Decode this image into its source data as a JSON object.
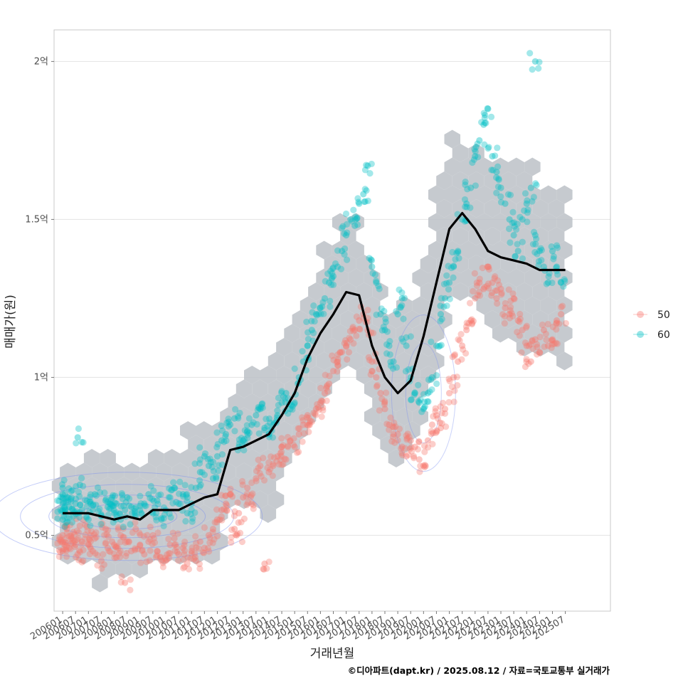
{
  "chart_data": {
    "type": "scatter",
    "xlabel": "거래년월",
    "ylabel": "매매가(원)",
    "caption": "©디아파트(dapt.kr) / 2025.08.12 / 자료=국토교통부 실거래가",
    "x_ticks": [
      "200601",
      "200607",
      "200701",
      "200707",
      "200801",
      "200807",
      "200901",
      "200907",
      "201001",
      "201007",
      "201101",
      "201107",
      "201201",
      "201207",
      "201301",
      "201307",
      "201401",
      "201407",
      "201501",
      "201507",
      "201601",
      "201607",
      "201701",
      "201707",
      "201801",
      "201807",
      "201901",
      "201907",
      "202001",
      "202007",
      "202101",
      "202107",
      "202201",
      "202207",
      "202301",
      "202307",
      "202401",
      "202407",
      "202501",
      "202507"
    ],
    "y_ticks": [
      {
        "value": 0.5,
        "label": "0.5억"
      },
      {
        "value": 1.0,
        "label": "1억"
      },
      {
        "value": 1.5,
        "label": "1.5억"
      },
      {
        "value": 2.0,
        "label": "2억"
      }
    ],
    "y_unit": "억원",
    "ylim": [
      0.26,
      2.1
    ],
    "xlim": [
      "200509",
      "202704"
    ],
    "grid": "horizontal",
    "legend_position": "right",
    "legend": [
      {
        "name": "50",
        "color": "#F8766D"
      },
      {
        "name": "60",
        "color": "#00BFC4"
      }
    ],
    "trend_line": {
      "color": "#000000",
      "x": [
        "200601",
        "200607",
        "200701",
        "200707",
        "200801",
        "200807",
        "200901",
        "200907",
        "201001",
        "201007",
        "201101",
        "201107",
        "201201",
        "201207",
        "201301",
        "201307",
        "201401",
        "201407",
        "201501",
        "201507",
        "201601",
        "201607",
        "201701",
        "201707",
        "201801",
        "201807",
        "201901",
        "201907",
        "202001",
        "202007",
        "202101",
        "202107",
        "202201",
        "202207",
        "202301",
        "202307",
        "202401",
        "202407",
        "202501",
        "202507"
      ],
      "values": [
        0.57,
        0.57,
        0.57,
        0.56,
        0.55,
        0.56,
        0.55,
        0.58,
        0.58,
        0.58,
        0.6,
        0.62,
        0.63,
        0.77,
        0.78,
        0.8,
        0.82,
        0.88,
        0.95,
        1.06,
        1.14,
        1.2,
        1.27,
        1.26,
        1.1,
        1.0,
        0.95,
        0.99,
        1.13,
        1.3,
        1.47,
        1.52,
        1.47,
        1.4,
        1.38,
        1.37,
        1.36,
        1.34,
        1.34,
        1.34
      ]
    },
    "series": [
      {
        "name": "50",
        "color": "#F8766D",
        "points": [
          [
            "200601",
            0.45
          ],
          [
            "200601",
            0.48
          ],
          [
            "200601",
            0.5
          ],
          [
            "200602",
            0.47
          ],
          [
            "200603",
            0.52
          ],
          [
            "200604",
            0.46
          ],
          [
            "200605",
            0.49
          ],
          [
            "200606",
            0.51
          ],
          [
            "200607",
            0.47
          ],
          [
            "200608",
            0.44
          ],
          [
            "200609",
            0.53
          ],
          [
            "200610",
            0.48
          ],
          [
            "200701",
            0.47
          ],
          [
            "200702",
            0.5
          ],
          [
            "200703",
            0.45
          ],
          [
            "200704",
            0.49
          ],
          [
            "200707",
            0.42
          ],
          [
            "200709",
            0.52
          ],
          [
            "200710",
            0.46
          ],
          [
            "200712",
            0.48
          ],
          [
            "200801",
            0.47
          ],
          [
            "200802",
            0.43
          ],
          [
            "200804",
            0.5
          ],
          [
            "200806",
            0.35
          ],
          [
            "200807",
            0.48
          ],
          [
            "200809",
            0.45
          ],
          [
            "200811",
            0.52
          ],
          [
            "200901",
            0.47
          ],
          [
            "200903",
            0.44
          ],
          [
            "200905",
            0.48
          ],
          [
            "200907",
            0.5
          ],
          [
            "200909",
            0.45
          ],
          [
            "200911",
            0.42
          ],
          [
            "201001",
            0.42
          ],
          [
            "201003",
            0.47
          ],
          [
            "201005",
            0.49
          ],
          [
            "201007",
            0.44
          ],
          [
            "201009",
            0.46
          ],
          [
            "201011",
            0.41
          ],
          [
            "201101",
            0.45
          ],
          [
            "201103",
            0.42
          ],
          [
            "201105",
            0.48
          ],
          [
            "201107",
            0.46
          ],
          [
            "201109",
            0.5
          ],
          [
            "201111",
            0.52
          ],
          [
            "201201",
            0.55
          ],
          [
            "201203",
            0.58
          ],
          [
            "201205",
            0.6
          ],
          [
            "201207",
            0.63
          ],
          [
            "201209",
            0.52
          ],
          [
            "201210",
            0.5
          ],
          [
            "201211",
            0.57
          ],
          [
            "201301",
            0.62
          ],
          [
            "201303",
            0.65
          ],
          [
            "201305",
            0.6
          ],
          [
            "201307",
            0.68
          ],
          [
            "201309",
            0.72
          ],
          [
            "201311",
            0.41
          ],
          [
            "201401",
            0.7
          ],
          [
            "201403",
            0.72
          ],
          [
            "201405",
            0.75
          ],
          [
            "201407",
            0.78
          ],
          [
            "201409",
            0.74
          ],
          [
            "201411",
            0.8
          ],
          [
            "201501",
            0.78
          ],
          [
            "201503",
            0.82
          ],
          [
            "201505",
            0.85
          ],
          [
            "201507",
            0.88
          ],
          [
            "201509",
            0.86
          ],
          [
            "201511",
            0.9
          ],
          [
            "201601",
            0.92
          ],
          [
            "201603",
            0.95
          ],
          [
            "201605",
            0.98
          ],
          [
            "201607",
            1.02
          ],
          [
            "201609",
            1.05
          ],
          [
            "201611",
            1.08
          ],
          [
            "201701",
            1.1
          ],
          [
            "201703",
            1.12
          ],
          [
            "201705",
            1.15
          ],
          [
            "201707",
            1.18
          ],
          [
            "201709",
            1.2
          ],
          [
            "201711",
            1.15
          ],
          [
            "201801",
            1.05
          ],
          [
            "201803",
            1.0
          ],
          [
            "201805",
            0.95
          ],
          [
            "201807",
            0.9
          ],
          [
            "201809",
            0.85
          ],
          [
            "201811",
            0.82
          ],
          [
            "201901",
            0.82
          ],
          [
            "201903",
            0.78
          ],
          [
            "201905",
            0.75
          ],
          [
            "201907",
            0.8
          ],
          [
            "201909",
            0.78
          ],
          [
            "201911",
            0.74
          ],
          [
            "202001",
            0.72
          ],
          [
            "202003",
            0.8
          ],
          [
            "202005",
            0.85
          ],
          [
            "202007",
            0.88
          ],
          [
            "202009",
            0.84
          ],
          [
            "202011",
            0.9
          ],
          [
            "202101",
            0.95
          ],
          [
            "202103",
            1.0
          ],
          [
            "202105",
            1.05
          ],
          [
            "202107",
            1.1
          ],
          [
            "202109",
            1.15
          ],
          [
            "202111",
            1.18
          ],
          [
            "202201",
            1.25
          ],
          [
            "202203",
            1.3
          ],
          [
            "202205",
            1.28
          ],
          [
            "202207",
            1.35
          ],
          [
            "202209",
            1.3
          ],
          [
            "202211",
            1.25
          ],
          [
            "202301",
            1.28
          ],
          [
            "202303",
            1.22
          ],
          [
            "202305",
            1.2
          ],
          [
            "202307",
            1.25
          ],
          [
            "202309",
            1.18
          ],
          [
            "202311",
            1.15
          ],
          [
            "202401",
            1.1
          ],
          [
            "202403",
            1.05
          ],
          [
            "202405",
            1.12
          ],
          [
            "202407",
            1.08
          ],
          [
            "202409",
            1.15
          ],
          [
            "202411",
            1.1
          ],
          [
            "202501",
            1.12
          ],
          [
            "202503",
            1.18
          ],
          [
            "202505",
            1.2
          ]
        ]
      },
      {
        "name": "60",
        "color": "#00BFC4",
        "points": [
          [
            "200601",
            0.55
          ],
          [
            "200601",
            0.58
          ],
          [
            "200601",
            0.6
          ],
          [
            "200601",
            0.63
          ],
          [
            "200601",
            0.65
          ],
          [
            "200602",
            0.57
          ],
          [
            "200603",
            0.62
          ],
          [
            "200604",
            0.59
          ],
          [
            "200605",
            0.64
          ],
          [
            "200606",
            0.56
          ],
          [
            "200607",
            0.6
          ],
          [
            "200608",
            0.81
          ],
          [
            "200609",
            0.66
          ],
          [
            "200610",
            0.58
          ],
          [
            "200701",
            0.55
          ],
          [
            "200702",
            0.6
          ],
          [
            "200703",
            0.58
          ],
          [
            "200704",
            0.63
          ],
          [
            "200707",
            0.56
          ],
          [
            "200709",
            0.61
          ],
          [
            "200710",
            0.59
          ],
          [
            "200712",
            0.62
          ],
          [
            "200801",
            0.57
          ],
          [
            "200802",
            0.6
          ],
          [
            "200804",
            0.55
          ],
          [
            "200806",
            0.58
          ],
          [
            "200807",
            0.62
          ],
          [
            "200809",
            0.59
          ],
          [
            "200811",
            0.56
          ],
          [
            "200901",
            0.58
          ],
          [
            "200903",
            0.6
          ],
          [
            "200905",
            0.63
          ],
          [
            "200907",
            0.57
          ],
          [
            "200909",
            0.61
          ],
          [
            "200911",
            0.55
          ],
          [
            "201001",
            0.58
          ],
          [
            "201003",
            0.62
          ],
          [
            "201005",
            0.65
          ],
          [
            "201007",
            0.6
          ],
          [
            "201009",
            0.63
          ],
          [
            "201011",
            0.57
          ],
          [
            "201101",
            0.6
          ],
          [
            "201103",
            0.65
          ],
          [
            "201105",
            0.7
          ],
          [
            "201107",
            0.75
          ],
          [
            "201109",
            0.72
          ],
          [
            "201111",
            0.68
          ],
          [
            "201201",
            0.75
          ],
          [
            "201203",
            0.8
          ],
          [
            "201205",
            0.82
          ],
          [
            "201207",
            0.85
          ],
          [
            "201209",
            0.87
          ],
          [
            "201211",
            0.78
          ],
          [
            "201301",
            0.8
          ],
          [
            "201303",
            0.83
          ],
          [
            "201305",
            0.85
          ],
          [
            "201307",
            0.88
          ],
          [
            "201309",
            0.9
          ],
          [
            "201311",
            0.84
          ],
          [
            "201401",
            0.82
          ],
          [
            "201403",
            0.85
          ],
          [
            "201405",
            0.88
          ],
          [
            "201407",
            0.92
          ],
          [
            "201409",
            0.95
          ],
          [
            "201411",
            0.9
          ],
          [
            "201501",
            0.92
          ],
          [
            "201503",
            1.0
          ],
          [
            "201505",
            1.05
          ],
          [
            "201507",
            1.1
          ],
          [
            "201509",
            1.15
          ],
          [
            "201511",
            1.2
          ],
          [
            "201601",
            1.22
          ],
          [
            "201603",
            1.25
          ],
          [
            "201605",
            1.3
          ],
          [
            "201607",
            1.32
          ],
          [
            "201609",
            1.35
          ],
          [
            "201611",
            1.4
          ],
          [
            "201701",
            1.45
          ],
          [
            "201703",
            1.5
          ],
          [
            "201705",
            1.48
          ],
          [
            "201707",
            1.55
          ],
          [
            "201709",
            1.58
          ],
          [
            "201711",
            1.67
          ],
          [
            "201801",
            1.35
          ],
          [
            "201803",
            1.3
          ],
          [
            "201805",
            1.2
          ],
          [
            "201807",
            1.15
          ],
          [
            "201809",
            1.1
          ],
          [
            "201811",
            1.05
          ],
          [
            "201901",
            1.2
          ],
          [
            "201903",
            1.25
          ],
          [
            "201905",
            1.1
          ],
          [
            "201907",
            1.0
          ],
          [
            "201909",
            0.95
          ],
          [
            "201911",
            0.92
          ],
          [
            "202001",
            0.9
          ],
          [
            "202003",
            0.95
          ],
          [
            "202005",
            1.0
          ],
          [
            "202007",
            1.1
          ],
          [
            "202009",
            1.2
          ],
          [
            "202011",
            1.25
          ],
          [
            "202101",
            1.3
          ],
          [
            "202103",
            1.35
          ],
          [
            "202105",
            1.4
          ],
          [
            "202107",
            1.5
          ],
          [
            "202109",
            1.55
          ],
          [
            "202111",
            1.6
          ],
          [
            "202201",
            1.7
          ],
          [
            "202203",
            1.75
          ],
          [
            "202205",
            1.8
          ],
          [
            "202207",
            1.85
          ],
          [
            "202209",
            1.7
          ],
          [
            "202211",
            1.65
          ],
          [
            "202301",
            1.6
          ],
          [
            "202303",
            1.55
          ],
          [
            "202305",
            1.5
          ],
          [
            "202307",
            1.45
          ],
          [
            "202309",
            1.4
          ],
          [
            "202311",
            1.5
          ],
          [
            "202401",
            1.55
          ],
          [
            "202403",
            1.6
          ],
          [
            "202405",
            1.45
          ],
          [
            "202407",
            1.4
          ],
          [
            "202409",
            1.35
          ],
          [
            "202411",
            1.3
          ],
          [
            "202501",
            1.4
          ],
          [
            "202503",
            1.35
          ],
          [
            "202505",
            1.3
          ],
          [
            "202405",
            2.0
          ]
        ]
      }
    ]
  }
}
